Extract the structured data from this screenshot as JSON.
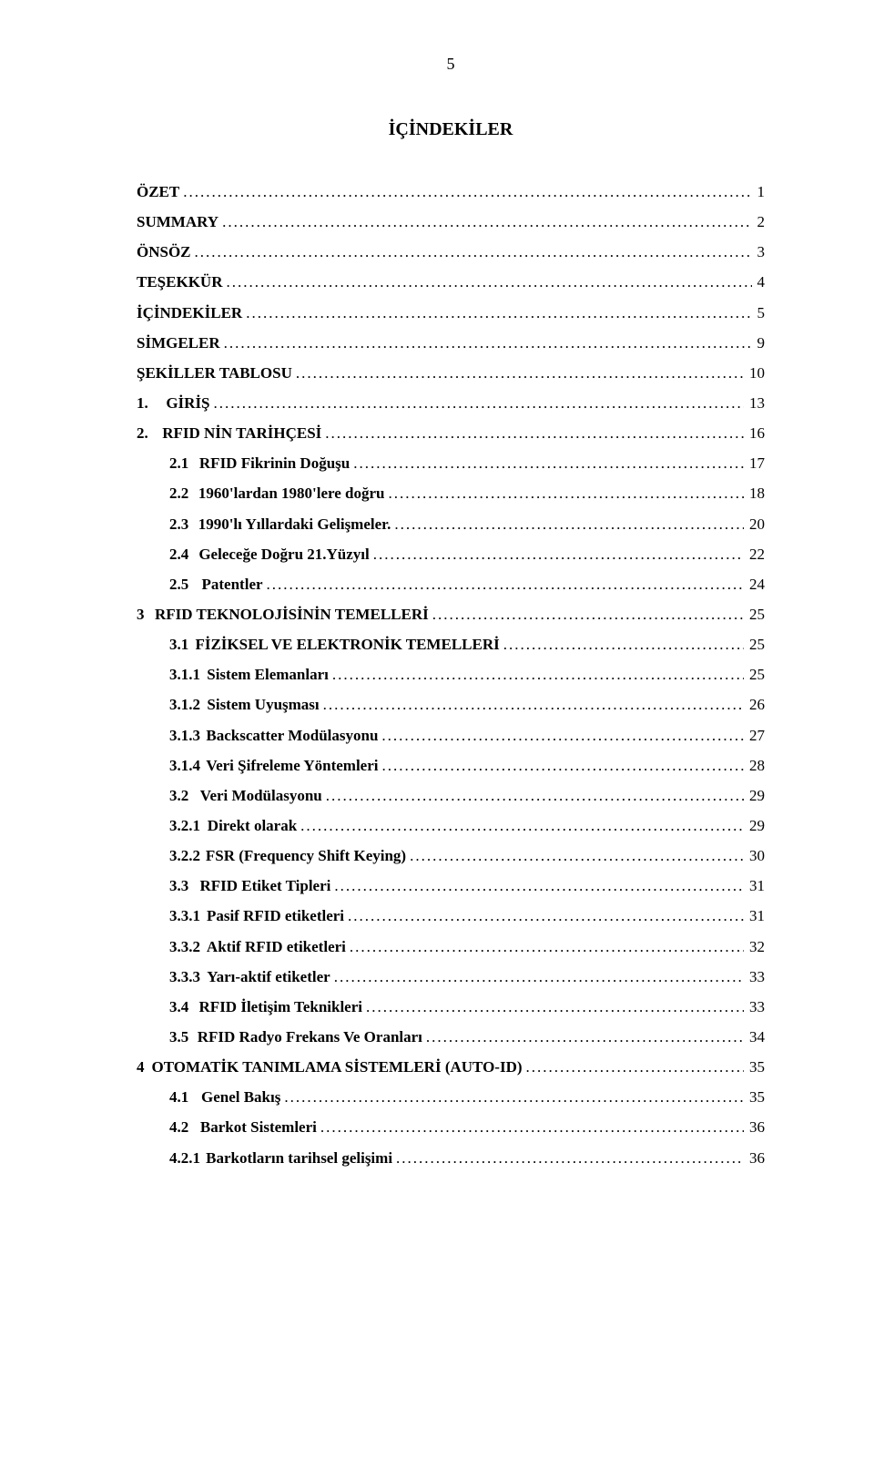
{
  "page_number": "5",
  "title": "İÇİNDEKİLER",
  "entries": [
    {
      "prefix": "",
      "label": "ÖZET",
      "page": "1",
      "indent": 0,
      "bold": true
    },
    {
      "prefix": "",
      "label": "SUMMARY",
      "page": "2",
      "indent": 0,
      "bold": true
    },
    {
      "prefix": "",
      "label": "ÖNSÖZ",
      "page": "3",
      "indent": 0,
      "bold": true
    },
    {
      "prefix": "",
      "label": "TEŞEKKÜR",
      "page": "4",
      "indent": 0,
      "bold": true
    },
    {
      "prefix": "",
      "label": "İÇİNDEKİLER",
      "page": "5",
      "indent": 0,
      "bold": true
    },
    {
      "prefix": "",
      "label": "SİMGELER",
      "page": "9",
      "indent": 0,
      "bold": true
    },
    {
      "prefix": "",
      "label": "ŞEKİLLER TABLOSU",
      "page": "10",
      "indent": 0,
      "bold": true
    },
    {
      "prefix": "1.",
      "label": "GİRİŞ",
      "page": "13",
      "indent": 0,
      "bold": true,
      "gap": "gap-top"
    },
    {
      "prefix": "2.",
      "label": "RFID NİN TARİHÇESİ",
      "page": "16",
      "indent": 0,
      "bold": true,
      "gap": "gap-top"
    },
    {
      "prefix": "2.1",
      "label": "RFID Fikrinin Doğuşu",
      "page": "17",
      "indent": 1,
      "bold": true,
      "gap": "gap-2"
    },
    {
      "prefix": "2.2",
      "label": "1960'lardan 1980'lere doğru",
      "page": "18",
      "indent": 1,
      "bold": true,
      "gap": "gap-2"
    },
    {
      "prefix": "2.3",
      "label": "1990'lı Yıllardaki Gelişmeler.",
      "page": "20",
      "indent": 1,
      "bold": true,
      "gap": "gap-2"
    },
    {
      "prefix": "2.4",
      "label": "Geleceğe Doğru 21.Yüzyıl",
      "page": "22",
      "indent": 1,
      "bold": true,
      "gap": "gap-2"
    },
    {
      "prefix": "2.5",
      "label": "Patentler",
      "page": "24",
      "indent": 1,
      "bold": true,
      "gap": "gap-2"
    },
    {
      "prefix": "3",
      "label": "RFID TEKNOLOJİSİNİN TEMELLERİ",
      "page": "25",
      "indent": 0,
      "bold": true,
      "gap": "gap-top"
    },
    {
      "prefix": "3.1",
      "label": "FİZİKSEL VE ELEKTRONİK TEMELLERİ",
      "page": "25",
      "indent": 1,
      "bold": true,
      "gap": "gap-2"
    },
    {
      "prefix": "3.1.1",
      "label": "Sistem Elemanları",
      "page": "25",
      "indent": 2,
      "bold": true,
      "gap": "gap-3"
    },
    {
      "prefix": "3.1.2",
      "label": "Sistem Uyuşması",
      "page": "26",
      "indent": 2,
      "bold": true,
      "gap": "gap-3"
    },
    {
      "prefix": "3.1.3",
      "label": "Backscatter Modülasyonu",
      "page": "27",
      "indent": 2,
      "bold": true,
      "gap": "gap-3"
    },
    {
      "prefix": "3.1.4",
      "label": "Veri Şifreleme Yöntemleri",
      "page": "28",
      "indent": 2,
      "bold": true,
      "gap": "gap-3"
    },
    {
      "prefix": "3.2",
      "label": "Veri Modülasyonu",
      "page": "29",
      "indent": 1,
      "bold": true,
      "gap": "gap-2"
    },
    {
      "prefix": "3.2.1",
      "label": "Direkt olarak",
      "page": "29",
      "indent": 2,
      "bold": true,
      "gap": "gap-3"
    },
    {
      "prefix": "3.2.2",
      "label": "FSR (Frequency Shift Keying)",
      "page": "30",
      "indent": 2,
      "bold": true,
      "gap": "gap-3"
    },
    {
      "prefix": "3.3",
      "label": "RFID Etiket Tipleri",
      "page": "31",
      "indent": 1,
      "bold": true,
      "gap": "gap-2"
    },
    {
      "prefix": "3.3.1",
      "label": "Pasif RFID etiketleri",
      "page": "31",
      "indent": 2,
      "bold": true,
      "gap": "gap-3"
    },
    {
      "prefix": "3.3.2",
      "label": "Aktif RFID etiketleri",
      "page": "32",
      "indent": 2,
      "bold": true,
      "gap": "gap-3"
    },
    {
      "prefix": "3.3.3",
      "label": "Yarı-aktif etiketler",
      "page": "33",
      "indent": 2,
      "bold": true,
      "gap": "gap-3"
    },
    {
      "prefix": "3.4",
      "label": "RFID İletişim Teknikleri",
      "page": "33",
      "indent": 1,
      "bold": true,
      "gap": "gap-2"
    },
    {
      "prefix": "3.5",
      "label": "RFID Radyo Frekans Ve Oranları",
      "page": "34",
      "indent": 1,
      "bold": true,
      "gap": "gap-2"
    },
    {
      "prefix": "4",
      "label": "OTOMATİK TANIMLAMA SİSTEMLERİ (AUTO-ID)",
      "page": "35",
      "indent": 0,
      "bold": true,
      "gap": "gap-top"
    },
    {
      "prefix": "4.1",
      "label": "Genel Bakış",
      "page": "35",
      "indent": 1,
      "bold": true,
      "gap": "gap-2"
    },
    {
      "prefix": "4.2",
      "label": "Barkot Sistemleri",
      "page": "36",
      "indent": 1,
      "bold": true,
      "gap": "gap-2"
    },
    {
      "prefix": "4.2.1",
      "label": "Barkotların tarihsel gelişimi",
      "page": "36",
      "indent": 2,
      "bold": true,
      "gap": "gap-3"
    }
  ]
}
